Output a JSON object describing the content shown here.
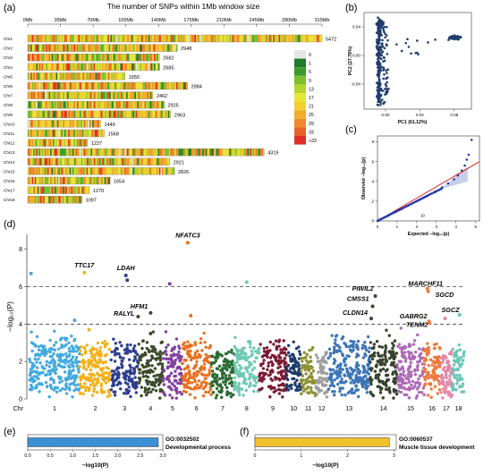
{
  "panels": {
    "a": "(a)",
    "b": "(b)",
    "c": "(c)",
    "d": "(d)",
    "e": "(e)",
    "f": "(f)"
  },
  "chart_data": [
    {
      "id": "a",
      "type": "heatmap",
      "title": "The number of SNPs within 1Mb window size",
      "x_ticks": [
        "0Mb",
        "35Mb",
        "70Mb",
        "105Mb",
        "140Mb",
        "175Mb",
        "210Mb",
        "245Mb",
        "280Mb",
        "315Mb"
      ],
      "x_tick_values": [
        0,
        35,
        70,
        105,
        140,
        175,
        210,
        245,
        280,
        315
      ],
      "xlim": [
        0,
        315
      ],
      "chromosomes": [
        {
          "name": "Chr1",
          "length": 315,
          "count": "5472"
        },
        {
          "name": "Chr2",
          "length": 160,
          "count": "2948"
        },
        {
          "name": "Chr3",
          "length": 141,
          "count": "2682"
        },
        {
          "name": "Chr4",
          "length": 141,
          "count": "2685"
        },
        {
          "name": "Chr5",
          "length": 104,
          "count": "1950"
        },
        {
          "name": "Chr6",
          "length": 171,
          "count": "2984"
        },
        {
          "name": "Chr7",
          "length": 134,
          "count": "2462"
        },
        {
          "name": "Chr8",
          "length": 146,
          "count": "2925"
        },
        {
          "name": "Chr9",
          "length": 153,
          "count": "2963"
        },
        {
          "name": "Chr10",
          "length": 78,
          "count": "1449"
        },
        {
          "name": "Chr11",
          "length": 82,
          "count": "1568"
        },
        {
          "name": "Chr12",
          "length": 64,
          "count": "1227"
        },
        {
          "name": "Chr13",
          "length": 253,
          "count": "4319"
        },
        {
          "name": "Chr14",
          "length": 152,
          "count": "2921"
        },
        {
          "name": "Chr15",
          "length": 157,
          "count": "2826"
        },
        {
          "name": "Chr16",
          "length": 88,
          "count": "1654"
        },
        {
          "name": "Chr17",
          "length": 66,
          "count": "1270"
        },
        {
          "name": "Chr18",
          "length": 58,
          "count": "1097"
        }
      ],
      "legend": [
        "0",
        "1",
        "5",
        "9",
        "13",
        "17",
        "21",
        "25",
        "29",
        "33",
        ">33"
      ],
      "legend_colors": [
        "#e6e6e6",
        "#1f7a2c",
        "#3d9b2e",
        "#7bbf2e",
        "#b5d430",
        "#e7e63a",
        "#f3cf2f",
        "#f2ad2c",
        "#ee8a2d",
        "#e9622c",
        "#e02f2a"
      ]
    },
    {
      "id": "b",
      "type": "scatter",
      "xlabel": "PC1 (61.12%)",
      "ylabel": "PC2 (27.78%)",
      "x_ticks": [
        "0.00",
        "0.04",
        "0.08"
      ],
      "x_tick_values": [
        0.0,
        0.04,
        0.08
      ],
      "y_ticks": [
        "0.04",
        "0.00",
        "-0.04"
      ],
      "y_tick_values": [
        0.04,
        0.0,
        -0.04
      ],
      "xlim": [
        -0.025,
        0.1
      ],
      "ylim": [
        -0.075,
        0.06
      ],
      "color": "#1f3d6d"
    },
    {
      "id": "c",
      "type": "scatter",
      "xlabel": "Expected −log₁₀(p)",
      "ylabel": "Observed −log₁₀(p)",
      "x_ticks": [
        "0",
        "1",
        "2",
        "3",
        "4",
        "5"
      ],
      "x_tick_values": [
        0,
        1,
        2,
        3,
        4,
        5
      ],
      "y_ticks": [
        "0",
        "2",
        "4",
        "6",
        "8"
      ],
      "y_tick_values": [
        0,
        2,
        4,
        6,
        8
      ],
      "xlim": [
        0,
        5.2
      ],
      "ylim": [
        0,
        8.6
      ],
      "annotation": "10",
      "points": [
        [
          0.2,
          0.2
        ],
        [
          0.6,
          0.6
        ],
        [
          1.0,
          1.0
        ],
        [
          1.5,
          1.5
        ],
        [
          2.0,
          2.0
        ],
        [
          2.5,
          2.5
        ],
        [
          3.0,
          3.0
        ],
        [
          3.3,
          3.4
        ],
        [
          3.6,
          3.8
        ],
        [
          3.9,
          4.2
        ],
        [
          4.1,
          4.6
        ],
        [
          4.3,
          5.1
        ],
        [
          4.45,
          5.6
        ],
        [
          4.55,
          6.2
        ],
        [
          4.65,
          6.7
        ],
        [
          4.8,
          8.2
        ]
      ],
      "color": "#2a3aa8",
      "line_color": "#e02020"
    },
    {
      "id": "d",
      "type": "scatter",
      "subtype": "manhattan",
      "ylabel": "−log₁₀(P)",
      "xlabel": "Chr",
      "y_ticks": [
        "0",
        "2",
        "4",
        "6",
        "8"
      ],
      "y_tick_values": [
        0,
        2,
        4,
        6,
        8
      ],
      "ylim": [
        0,
        8.8
      ],
      "thresholds": [
        6,
        4
      ],
      "chromosomes": [
        {
          "label": "1",
          "color": "#41a9e0",
          "width": 12,
          "base": 2.8
        },
        {
          "label": "2",
          "color": "#f3b01a",
          "width": 7.5,
          "base": 2.5
        },
        {
          "label": "3",
          "color": "#2d3d8e",
          "width": 6.5,
          "base": 2.6
        },
        {
          "label": "4",
          "color": "#3d4a2a",
          "width": 6,
          "base": 2.5
        },
        {
          "label": "5",
          "color": "#7f3fa0",
          "width": 4.5,
          "base": 2.4
        },
        {
          "label": "6",
          "color": "#e8701d",
          "width": 7,
          "base": 2.7
        },
        {
          "label": "7",
          "color": "#2c6a34",
          "width": 5.5,
          "base": 2.3
        },
        {
          "label": "8",
          "color": "#6ec9b2",
          "width": 6,
          "base": 2.5
        },
        {
          "label": "9",
          "color": "#7c1a35",
          "width": 6.5,
          "base": 2.7
        },
        {
          "label": "10",
          "color": "#1e3a6b",
          "width": 3.5,
          "base": 2.2
        },
        {
          "label": "11",
          "color": "#8f8f35",
          "width": 3.5,
          "base": 2.1
        },
        {
          "label": "12",
          "color": "#9e9e9e",
          "width": 3,
          "base": 2.0
        },
        {
          "label": "13",
          "color": "#3b74b8",
          "width": 10,
          "base": 2.8
        },
        {
          "label": "14",
          "color": "#37432d",
          "width": 6.5,
          "base": 2.6
        },
        {
          "label": "15",
          "color": "#ad6ab6",
          "width": 6.5,
          "base": 2.6
        },
        {
          "label": "16",
          "color": "#f0783a",
          "width": 3.8,
          "base": 2.6
        },
        {
          "label": "17",
          "color": "#e287a7",
          "width": 3,
          "base": 2.2
        },
        {
          "label": "18",
          "color": "#69c7b6",
          "width": 2.8,
          "base": 2.3
        }
      ],
      "tops": [
        {
          "chr": 0,
          "pos": 0.03,
          "y": 6.7
        },
        {
          "chr": 0,
          "pos": 0.9,
          "y": 4.2
        },
        {
          "chr": 1,
          "pos": 0.15,
          "y": 6.75
        },
        {
          "chr": 1,
          "pos": 0.3,
          "y": 3.7
        },
        {
          "chr": 2,
          "pos": 0.55,
          "y": 6.6
        },
        {
          "chr": 2,
          "pos": 0.6,
          "y": 6.35
        },
        {
          "chr": 3,
          "pos": 0.0,
          "y": 4.4
        },
        {
          "chr": 3,
          "pos": 0.5,
          "y": 4.6
        },
        {
          "chr": 3,
          "pos": 0.5,
          "y": 3.5
        },
        {
          "chr": 4,
          "pos": 0.35,
          "y": 6.15
        },
        {
          "chr": 5,
          "pos": 0.2,
          "y": 8.35
        },
        {
          "chr": 5,
          "pos": 0.3,
          "y": 4.45
        },
        {
          "chr": 7,
          "pos": 0.5,
          "y": 6.25
        },
        {
          "chr": 13,
          "pos": 0.2,
          "y": 5.5
        },
        {
          "chr": 13,
          "pos": 0.1,
          "y": 4.95
        },
        {
          "chr": 13,
          "pos": 0.05,
          "y": 4.3
        },
        {
          "chr": 15,
          "pos": 0.2,
          "y": 5.9
        },
        {
          "chr": 15,
          "pos": 0.25,
          "y": 5.75
        },
        {
          "chr": 15,
          "pos": 0.3,
          "y": 4.15
        },
        {
          "chr": 15,
          "pos": 0.35,
          "y": 4.05
        },
        {
          "chr": 16,
          "pos": 0.4,
          "y": 4.3
        },
        {
          "chr": 17,
          "pos": 0.6,
          "y": 4.5
        }
      ],
      "genes": [
        {
          "name": "NFATC3",
          "chr": 5,
          "pos": 0.2,
          "y": 8.35
        },
        {
          "name": "TTC17",
          "chr": 1,
          "pos": 0.15,
          "y": 6.75
        },
        {
          "name": "LDAH",
          "chr": 2,
          "pos": 0.55,
          "y": 6.6
        },
        {
          "name": "HFM1",
          "chr": 3,
          "pos": 0.5,
          "y": 4.6
        },
        {
          "name": "RALYL",
          "chr": 3,
          "pos": 0.0,
          "y": 4.4
        },
        {
          "name": "PIWIL2",
          "chr": 13,
          "pos": 0.2,
          "y": 5.5
        },
        {
          "name": "CMSS1",
          "chr": 13,
          "pos": 0.1,
          "y": 4.95
        },
        {
          "name": "CLDN14",
          "chr": 13,
          "pos": 0.05,
          "y": 4.3
        },
        {
          "name": "MARCHF11",
          "chr": 15,
          "pos": 0.2,
          "y": 5.9
        },
        {
          "name": "SGCD",
          "chr": 15,
          "pos": 0.25,
          "y": 5.75
        },
        {
          "name": "GABRG2",
          "chr": 15,
          "pos": 0.3,
          "y": 4.15
        },
        {
          "name": "SGCZ",
          "chr": 16,
          "pos": 0.4,
          "y": 4.3
        },
        {
          "name": "TENM2",
          "chr": 15,
          "pos": 0.35,
          "y": 4.05
        }
      ]
    },
    {
      "id": "e",
      "type": "bar",
      "orientation": "horizontal",
      "categories": [
        "Developmental process"
      ],
      "term": "GO:0032502",
      "values": [
        2.9
      ],
      "xlabel": "−log10(P)",
      "x_ticks": [
        "0.0",
        "0.5",
        "1.0",
        "1.5",
        "2.0",
        "2.5",
        "3.0"
      ],
      "x_tick_values": [
        0,
        0.5,
        1.0,
        1.5,
        2.0,
        2.5,
        3.0
      ],
      "xlim": [
        0,
        3.0
      ],
      "color": "#3a8fd6"
    },
    {
      "id": "f",
      "type": "bar",
      "orientation": "horizontal",
      "categories": [
        "Muscle tissue development"
      ],
      "term": "GO:0060537",
      "values": [
        2.9
      ],
      "xlabel": "−log10(P)",
      "x_ticks": [
        "0",
        "1",
        "2",
        "3"
      ],
      "x_tick_values": [
        0,
        1,
        2,
        3
      ],
      "xlim": [
        0,
        3.05
      ],
      "color": "#f2c12e"
    }
  ]
}
